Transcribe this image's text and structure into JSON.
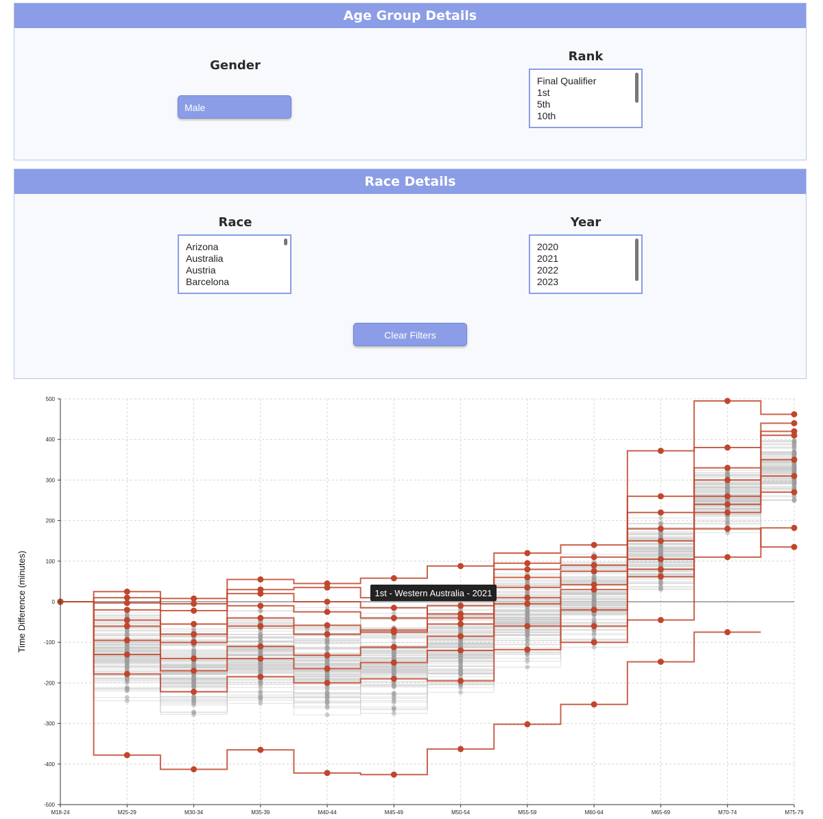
{
  "age_group_panel": {
    "title": "Age Group Details",
    "gender_label": "Gender",
    "gender_button": "Male",
    "rank_label": "Rank",
    "rank_options": [
      "Final Qualifier",
      "1st",
      "5th",
      "10th"
    ]
  },
  "race_panel": {
    "title": "Race Details",
    "race_label": "Race",
    "race_options": [
      "Arizona",
      "Australia",
      "Austria",
      "Barcelona"
    ],
    "year_label": "Year",
    "year_options": [
      "2020",
      "2021",
      "2022",
      "2023"
    ],
    "clear_button": "Clear Filters"
  },
  "colors": {
    "accent": "#8b9de6",
    "highlight": "#c0462c",
    "grey_line": "#c8c8c8",
    "grey_point": "#9a9a9a"
  },
  "chart_data": {
    "type": "line",
    "step": true,
    "categories": [
      "M18-24",
      "M25-29",
      "M30-34",
      "M35-39",
      "M40-44",
      "M45-49",
      "M50-54",
      "M55-59",
      "M60-64",
      "M65-69",
      "M70-74",
      "M75-79"
    ],
    "ylabel": "Time Difference (minutes)",
    "xlabel": "",
    "ylim": [
      -500,
      500
    ],
    "yticks": [
      -500,
      -400,
      -300,
      -200,
      -100,
      0,
      100,
      200,
      300,
      400,
      500
    ],
    "grid": true,
    "tooltip": "1st - Western Australia - 2021",
    "highlighted_series": [
      {
        "values": [
          0,
          -378,
          -413,
          -365,
          -422,
          -426,
          -363,
          -302,
          -253,
          -148,
          -75,
          null
        ]
      },
      {
        "values": [
          0,
          -3,
          8,
          55,
          45,
          58,
          88,
          120,
          140,
          372,
          495,
          462
        ]
      },
      {
        "values": [
          0,
          -45,
          -80,
          -40,
          -58,
          -75,
          -40,
          10,
          -100,
          -45,
          110,
          182
        ]
      },
      {
        "values": [
          0,
          -178,
          -222,
          -185,
          -200,
          -190,
          -195,
          -118,
          -60,
          62,
          180,
          135
        ]
      },
      {
        "values": [
          0,
          10,
          -22,
          20,
          0,
          -15,
          -30,
          60,
          42,
          150,
          260,
          350
        ]
      },
      {
        "values": [
          0,
          -95,
          -140,
          -110,
          -132,
          -112,
          -85,
          -5,
          30,
          105,
          220,
          310
        ]
      },
      {
        "values": [
          0,
          25,
          -5,
          30,
          35,
          10,
          12,
          80,
          90,
          220,
          330,
          420
        ]
      },
      {
        "values": [
          0,
          -60,
          -100,
          -60,
          -80,
          -70,
          -55,
          35,
          75,
          180,
          300,
          410
        ]
      },
      {
        "values": [
          0,
          -130,
          -170,
          -140,
          -165,
          -150,
          -120,
          -60,
          -20,
          80,
          240,
          270
        ]
      },
      {
        "values": [
          0,
          -20,
          -55,
          -10,
          -25,
          -40,
          -10,
          95,
          110,
          260,
          380,
          440
        ]
      }
    ],
    "background_series_count": 120
  }
}
